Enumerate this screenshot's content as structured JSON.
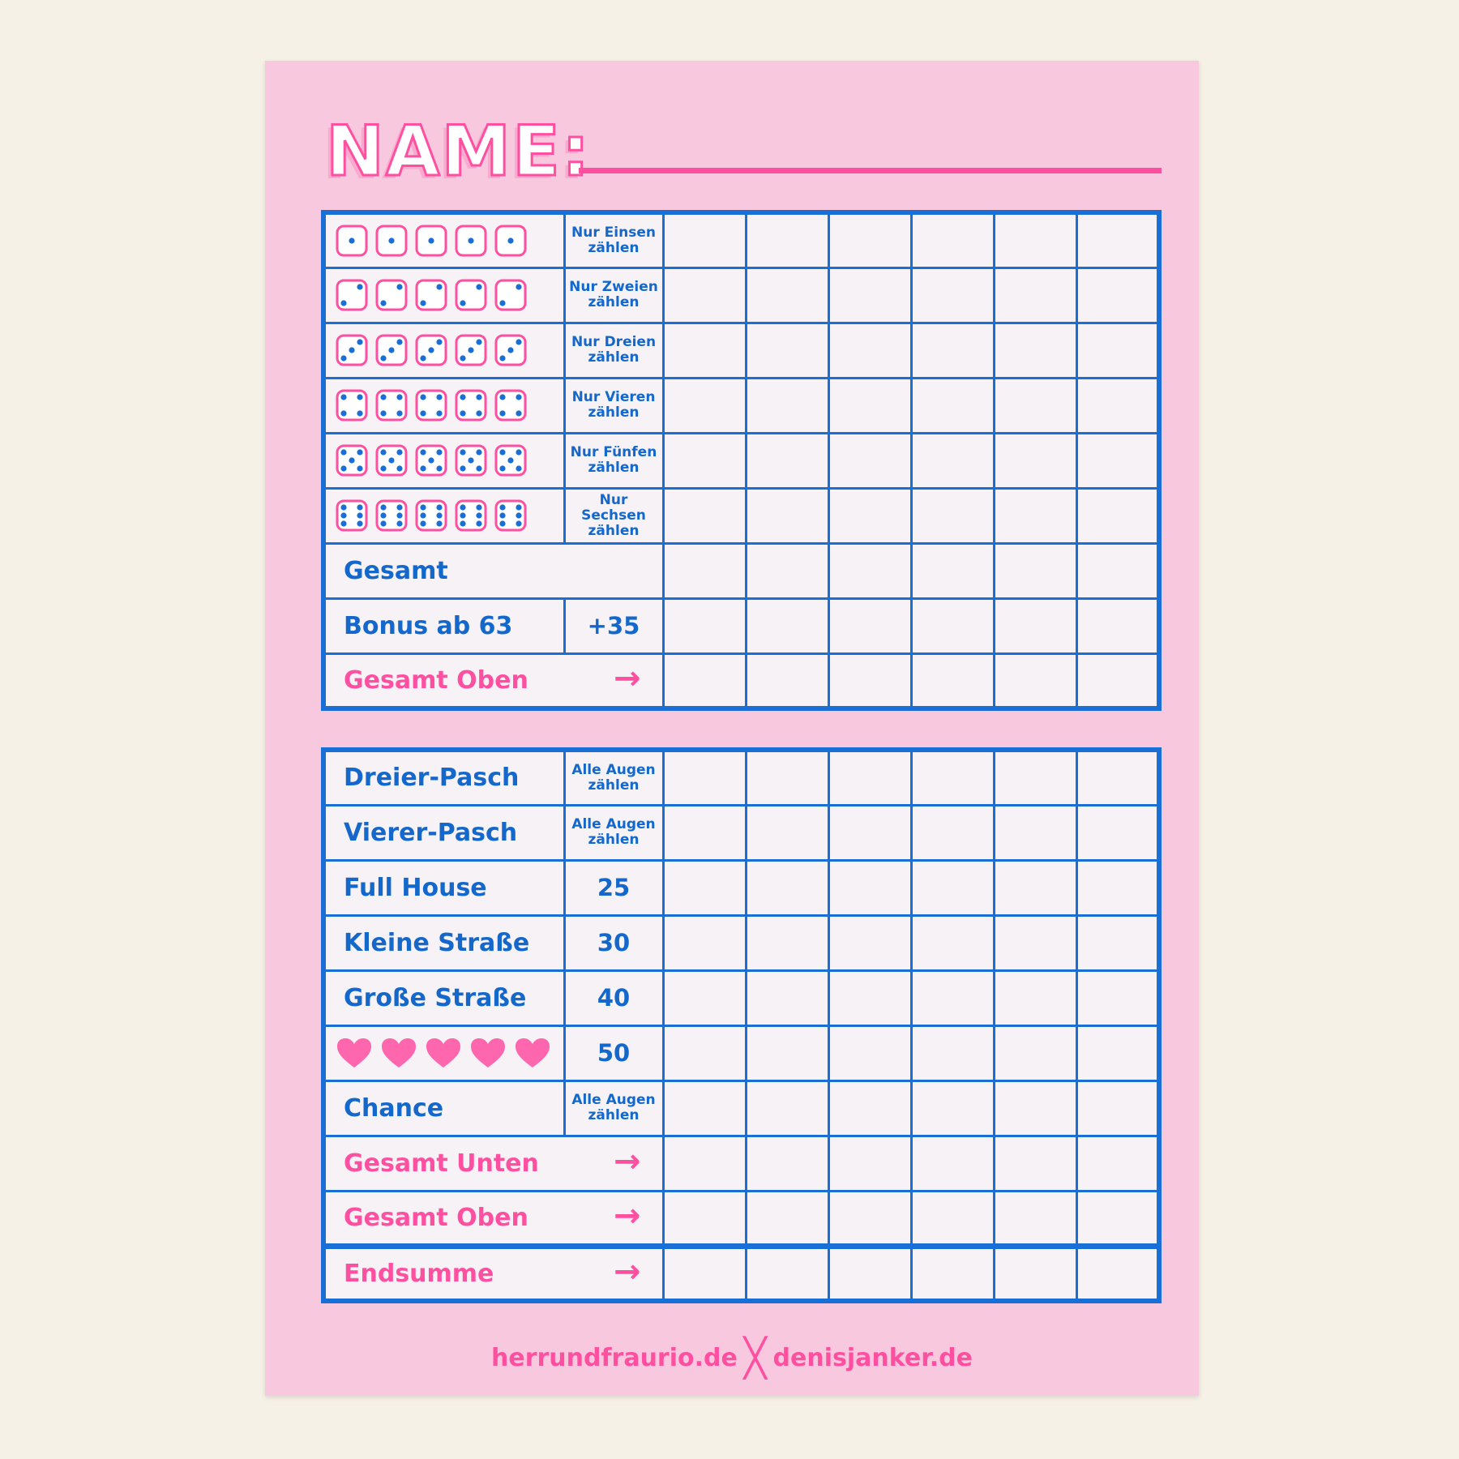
{
  "title": "NAME:",
  "colors": {
    "blue": "#1a6fd6",
    "pink": "#ff4fa0",
    "paper": "#f8c9de"
  },
  "upper": [
    {
      "dice": 1,
      "label1": "Nur Einsen",
      "label2": "zählen"
    },
    {
      "dice": 2,
      "label1": "Nur Zweien",
      "label2": "zählen"
    },
    {
      "dice": 3,
      "label1": "Nur Dreien",
      "label2": "zählen"
    },
    {
      "dice": 4,
      "label1": "Nur Vieren",
      "label2": "zählen"
    },
    {
      "dice": 5,
      "label1": "Nur Fünfen",
      "label2": "zählen"
    },
    {
      "dice": 6,
      "label1": "Nur Sechsen",
      "label2": "zählen"
    }
  ],
  "upper_totals": {
    "gesamt": "Gesamt",
    "bonus": "Bonus ab 63",
    "bonus_value": "+35",
    "gesamt_oben": "Gesamt Oben"
  },
  "lower": [
    {
      "name": "Dreier-Pasch",
      "label1": "Alle Augen",
      "label2": "zählen"
    },
    {
      "name": "Vierer-Pasch",
      "label1": "Alle Augen",
      "label2": "zählen"
    },
    {
      "name": "Full House",
      "value": "25"
    },
    {
      "name": "Kleine Straße",
      "value": "30"
    },
    {
      "name": "Große Straße",
      "value": "40"
    },
    {
      "icon": "heart-icon",
      "value": "50"
    },
    {
      "name": "Chance",
      "label1": "Alle Augen",
      "label2": "zählen"
    }
  ],
  "lower_totals": {
    "gesamt_unten": "Gesamt Unten",
    "gesamt_oben": "Gesamt Oben",
    "endsumme": "Endsumme"
  },
  "arrow": "→",
  "footer": {
    "left": "herrundfraurio.de",
    "sep": "╳",
    "right": "denisjanker.de"
  }
}
